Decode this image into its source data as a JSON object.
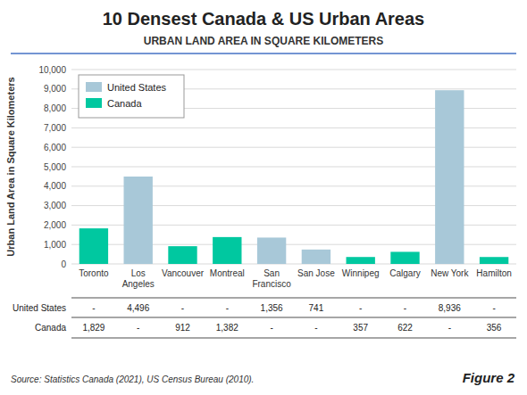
{
  "chart_data": {
    "type": "bar",
    "title": "10 Densest Canada & US Urban Areas",
    "subtitle": "URBAN LAND AREA IN SQUARE KILOMETERS",
    "ylabel": "Urban Land Area in Square Kilometers",
    "source": "Source: Statistics Canada (2021), US Census Bureau (2010).",
    "figure_label": "Figure 2",
    "categories": [
      "Toronto",
      "Los\nAngeles",
      "Vancouver",
      "Montreal",
      "San\nFrancisco",
      "San Jose",
      "Winnipeg",
      "Calgary",
      "New York",
      "Hamilton"
    ],
    "series": [
      {
        "name": "United States",
        "color": "#a8c8d8",
        "values": [
          null,
          4496,
          null,
          null,
          1356,
          741,
          null,
          null,
          8936,
          null
        ],
        "value_labels": [
          "-",
          "4,496",
          "-",
          "-",
          "1,356",
          "741",
          "-",
          "-",
          "8,936",
          "-"
        ]
      },
      {
        "name": "Canada",
        "color": "#00c8a0",
        "values": [
          1829,
          null,
          912,
          1382,
          null,
          null,
          357,
          622,
          null,
          356
        ],
        "value_labels": [
          "1,829",
          "-",
          "912",
          "1,382",
          "-",
          "-",
          "357",
          "622",
          "-",
          "356"
        ]
      }
    ],
    "ylim": [
      0,
      10000
    ],
    "yticks": [
      0,
      {
        "value": 1000,
        "label": "1,000"
      },
      {
        "value": 2000,
        "label": "2,000"
      },
      {
        "value": 3000,
        "label": "3,000"
      },
      {
        "value": 4000,
        "label": "4,000"
      },
      {
        "value": 5000,
        "label": "5,000"
      },
      {
        "value": 6000,
        "label": "6,000"
      },
      {
        "value": 7000,
        "label": "7,000"
      },
      {
        "value": 8000,
        "label": "8,000"
      },
      {
        "value": 9000,
        "label": "9,000"
      },
      {
        "value": 10000,
        "label": "10,000"
      }
    ],
    "grid": true,
    "legend": "upper left"
  }
}
